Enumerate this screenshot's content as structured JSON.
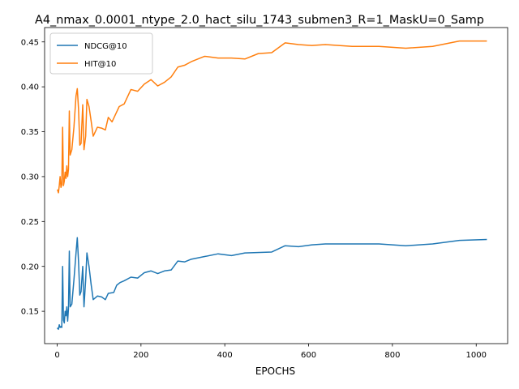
{
  "chart_data": {
    "type": "line",
    "title": "A4_nmax_0.0001_ntype_2.0_hact_silu_1743_submen3_R=1_MaskU=0_Samp",
    "xlabel": "EPOCHS",
    "ylabel": "",
    "xlim": [
      -30,
      1075
    ],
    "ylim": [
      0.114,
      0.466
    ],
    "xticks": [
      0,
      200,
      400,
      600,
      800,
      1000
    ],
    "yticks": [
      0.15,
      0.2,
      0.25,
      0.3,
      0.35,
      0.4,
      0.45
    ],
    "ytick_labels": [
      "0.15",
      "0.20",
      "0.25",
      "0.30",
      "0.35",
      "0.40",
      "0.45"
    ],
    "grid": false,
    "legend_position": "upper-left",
    "series": [
      {
        "name": "NDCG@10",
        "color": "#1f77b4",
        "points": [
          [
            1,
            0.131
          ],
          [
            3,
            0.13
          ],
          [
            5,
            0.135
          ],
          [
            7,
            0.132
          ],
          [
            9,
            0.133
          ],
          [
            11,
            0.132
          ],
          [
            13,
            0.2
          ],
          [
            15,
            0.14
          ],
          [
            17,
            0.137
          ],
          [
            19,
            0.15
          ],
          [
            21,
            0.145
          ],
          [
            23,
            0.155
          ],
          [
            25,
            0.139
          ],
          [
            27,
            0.153
          ],
          [
            29,
            0.217
          ],
          [
            31,
            0.155
          ],
          [
            35,
            0.158
          ],
          [
            40,
            0.185
          ],
          [
            45,
            0.215
          ],
          [
            48,
            0.232
          ],
          [
            51,
            0.205
          ],
          [
            54,
            0.168
          ],
          [
            57,
            0.172
          ],
          [
            61,
            0.2
          ],
          [
            64,
            0.155
          ],
          [
            68,
            0.185
          ],
          [
            71,
            0.215
          ],
          [
            76,
            0.2
          ],
          [
            81,
            0.18
          ],
          [
            86,
            0.163
          ],
          [
            96,
            0.167
          ],
          [
            106,
            0.166
          ],
          [
            115,
            0.163
          ],
          [
            122,
            0.17
          ],
          [
            135,
            0.171
          ],
          [
            142,
            0.179
          ],
          [
            150,
            0.182
          ],
          [
            160,
            0.184
          ],
          [
            176,
            0.188
          ],
          [
            192,
            0.187
          ],
          [
            208,
            0.193
          ],
          [
            224,
            0.195
          ],
          [
            240,
            0.192
          ],
          [
            256,
            0.195
          ],
          [
            272,
            0.196
          ],
          [
            288,
            0.206
          ],
          [
            304,
            0.205
          ],
          [
            320,
            0.208
          ],
          [
            352,
            0.211
          ],
          [
            384,
            0.214
          ],
          [
            416,
            0.212
          ],
          [
            448,
            0.215
          ],
          [
            512,
            0.216
          ],
          [
            544,
            0.223
          ],
          [
            576,
            0.222
          ],
          [
            608,
            0.224
          ],
          [
            640,
            0.225
          ],
          [
            704,
            0.225
          ],
          [
            768,
            0.225
          ],
          [
            832,
            0.223
          ],
          [
            896,
            0.225
          ],
          [
            960,
            0.229
          ],
          [
            1024,
            0.23
          ]
        ]
      },
      {
        "name": "HIT@10",
        "color": "#ff7f0e",
        "points": [
          [
            1,
            0.285
          ],
          [
            3,
            0.282
          ],
          [
            5,
            0.29
          ],
          [
            7,
            0.3
          ],
          [
            9,
            0.288
          ],
          [
            11,
            0.291
          ],
          [
            13,
            0.355
          ],
          [
            15,
            0.29
          ],
          [
            17,
            0.295
          ],
          [
            19,
            0.305
          ],
          [
            21,
            0.298
          ],
          [
            23,
            0.312
          ],
          [
            25,
            0.3
          ],
          [
            27,
            0.308
          ],
          [
            29,
            0.373
          ],
          [
            31,
            0.324
          ],
          [
            35,
            0.33
          ],
          [
            40,
            0.355
          ],
          [
            45,
            0.39
          ],
          [
            48,
            0.398
          ],
          [
            51,
            0.375
          ],
          [
            54,
            0.335
          ],
          [
            57,
            0.337
          ],
          [
            61,
            0.38
          ],
          [
            64,
            0.33
          ],
          [
            68,
            0.345
          ],
          [
            71,
            0.386
          ],
          [
            76,
            0.378
          ],
          [
            81,
            0.362
          ],
          [
            86,
            0.345
          ],
          [
            96,
            0.355
          ],
          [
            106,
            0.354
          ],
          [
            115,
            0.352
          ],
          [
            122,
            0.366
          ],
          [
            131,
            0.361
          ],
          [
            140,
            0.37
          ],
          [
            148,
            0.378
          ],
          [
            160,
            0.381
          ],
          [
            176,
            0.397
          ],
          [
            192,
            0.395
          ],
          [
            208,
            0.403
          ],
          [
            224,
            0.408
          ],
          [
            240,
            0.401
          ],
          [
            256,
            0.405
          ],
          [
            272,
            0.411
          ],
          [
            288,
            0.422
          ],
          [
            304,
            0.424
          ],
          [
            320,
            0.428
          ],
          [
            352,
            0.434
          ],
          [
            384,
            0.432
          ],
          [
            416,
            0.432
          ],
          [
            448,
            0.431
          ],
          [
            480,
            0.437
          ],
          [
            512,
            0.438
          ],
          [
            544,
            0.449
          ],
          [
            576,
            0.447
          ],
          [
            608,
            0.446
          ],
          [
            640,
            0.447
          ],
          [
            704,
            0.445
          ],
          [
            768,
            0.445
          ],
          [
            832,
            0.443
          ],
          [
            896,
            0.445
          ],
          [
            960,
            0.451
          ],
          [
            1024,
            0.451
          ]
        ]
      }
    ]
  }
}
